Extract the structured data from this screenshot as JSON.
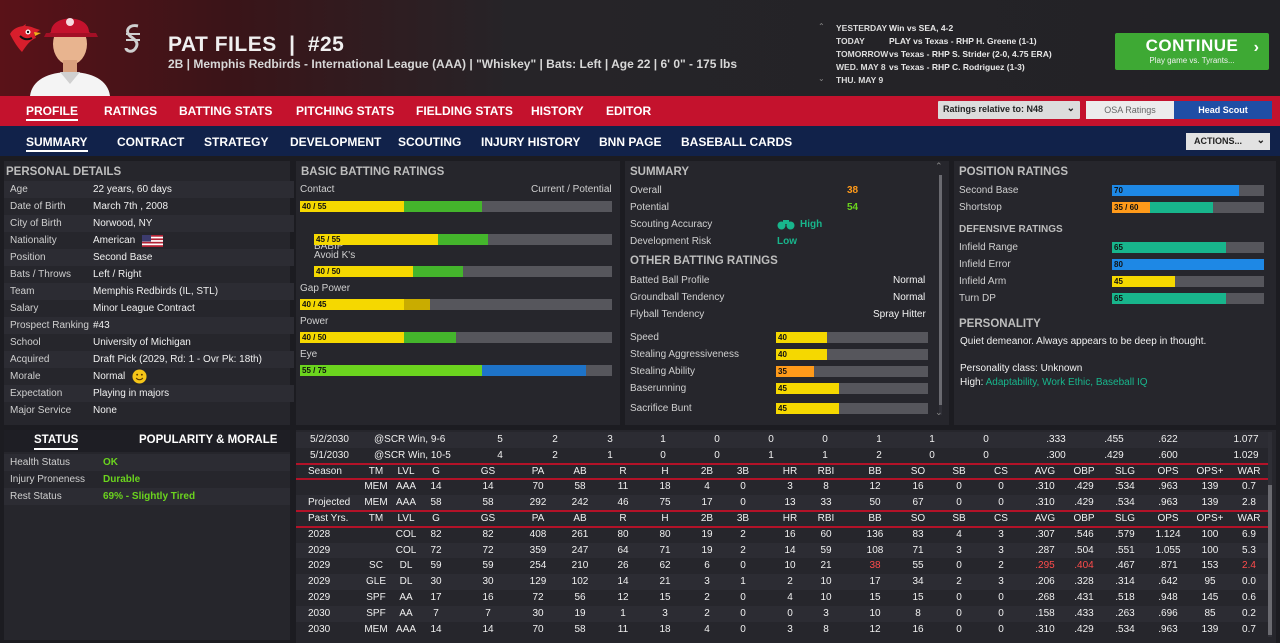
{
  "player": {
    "name": "PAT FILES",
    "number_sep": "|",
    "number": "#25",
    "subtitle": "2B | Memphis Redbirds - International League (AAA)  | \"Whiskey\" | Bats: Left  | Age 22  | 6' 0\"  - 175 lbs"
  },
  "schedule": [
    {
      "day": "YESTERDAY",
      "game": "Win vs SEA, 4-2"
    },
    {
      "day": "TODAY",
      "game": "PLAY vs Texas - RHP H. Greene (1-1)"
    },
    {
      "day": "TOMORROW",
      "game": "vs Texas - RHP S. Strider (2-0, 4.75 ERA)"
    },
    {
      "day": "WED. MAY 8",
      "game": "vs Texas - RHP C. Rodriguez (1-3)"
    },
    {
      "day": "THU. MAY 9",
      "game": ""
    }
  ],
  "continue": {
    "label": "CONTINUE",
    "sub": "Play game vs. Tyrants...",
    "chevron": "›"
  },
  "nav1": {
    "items": [
      "PROFILE",
      "RATINGS",
      "BATTING STATS",
      "PITCHING STATS",
      "FIELDING STATS",
      "HISTORY",
      "EDITOR"
    ],
    "ratings_relative": "Ratings relative to: N48",
    "osa": "OSA Ratings",
    "head_scout": "Head Scout"
  },
  "nav2": {
    "items": [
      "SUMMARY",
      "CONTRACT",
      "STRATEGY",
      "DEVELOPMENT",
      "SCOUTING",
      "INJURY HISTORY",
      "BNN PAGE",
      "BASEBALL CARDS"
    ],
    "actions": "ACTIONS..."
  },
  "personal": {
    "title": "PERSONAL DETAILS",
    "rows": [
      {
        "label": "Age",
        "value": "22 years, 60 days"
      },
      {
        "label": "Date of Birth",
        "value": "March 7th , 2008"
      },
      {
        "label": "City of Birth",
        "value": "Norwood, NY"
      },
      {
        "label": "Nationality",
        "value": "American"
      },
      {
        "label": "Position",
        "value": "Second Base"
      },
      {
        "label": "Bats / Throws",
        "value": "Left / Right"
      },
      {
        "label": "Team",
        "value": "Memphis Redbirds (IL, STL)"
      },
      {
        "label": "Salary",
        "value": "Minor League Contract"
      },
      {
        "label": "Prospect Ranking",
        "value": "#43"
      },
      {
        "label": "School",
        "value": "University of Michigan"
      },
      {
        "label": "Acquired",
        "value": "Draft Pick (2029, Rd: 1 - Ovr Pk: 18th)"
      },
      {
        "label": "Morale",
        "value": "Normal"
      },
      {
        "label": "Expectation",
        "value": "Playing in majors"
      },
      {
        "label": "Major Service",
        "value": "None"
      }
    ]
  },
  "status": {
    "tab_status": "STATUS",
    "tab_popularity": "POPULARITY & MORALE",
    "rows": [
      {
        "label": "Health Status",
        "value": "OK"
      },
      {
        "label": "Injury Proneness",
        "value": "Durable"
      },
      {
        "label": "Rest Status",
        "value": "69% - Slightly Tired"
      }
    ]
  },
  "batting_ratings": {
    "title": "BASIC BATTING RATINGS",
    "header": "Current / Potential",
    "rows": [
      {
        "label": "Contact",
        "text": "40 / 55",
        "current": 40,
        "potential": 55,
        "indent": false
      },
      {
        "label": "BABIP",
        "text": "45 / 55",
        "current": 45,
        "potential": 55,
        "indent": true
      },
      {
        "label": "Avoid K's",
        "text": "40 / 50",
        "current": 40,
        "potential": 50,
        "indent": true
      },
      {
        "label": "Gap Power",
        "text": "40 / 45",
        "current": 40,
        "potential": 45,
        "indent": false
      },
      {
        "label": "Power",
        "text": "40 / 50",
        "current": 40,
        "potential": 50,
        "indent": false
      },
      {
        "label": "Eye",
        "text": "55 / 75",
        "current": 55,
        "potential": 75,
        "indent": false
      }
    ]
  },
  "summary": {
    "title": "SUMMARY",
    "overall_label": "Overall",
    "overall": "38",
    "potential_label": "Potential",
    "potential": "54",
    "scouting_label": "Scouting Accuracy",
    "scouting": "High",
    "risk_label": "Development Risk",
    "risk": "Low",
    "other_title": "OTHER BATTING RATINGS",
    "other_text": [
      {
        "label": "Batted Ball Profile",
        "value": "Normal"
      },
      {
        "label": "Groundball Tendency",
        "value": "Normal"
      },
      {
        "label": "Flyball Tendency",
        "value": "Spray Hitter"
      }
    ],
    "other_bars": [
      {
        "label": "Speed",
        "value": 40
      },
      {
        "label": "Stealing Aggressiveness",
        "value": 40
      },
      {
        "label": "Stealing Ability",
        "value": 35
      },
      {
        "label": "Baserunning",
        "value": 45
      },
      {
        "label": "Sacrifice Bunt",
        "value": 45
      }
    ]
  },
  "position": {
    "title": "POSITION RATINGS",
    "rows": [
      {
        "label": "Second Base",
        "text": "70",
        "current": 70,
        "potential": 70
      },
      {
        "label": "Shortstop",
        "text": "35 / 60",
        "current": 35,
        "potential": 60
      }
    ],
    "def_title": "DEFENSIVE RATINGS",
    "def_rows": [
      {
        "label": "Infield Range",
        "value": 65
      },
      {
        "label": "Infield Error",
        "value": 80
      },
      {
        "label": "Infield Arm",
        "value": 45
      },
      {
        "label": "Turn DP",
        "value": 65
      }
    ]
  },
  "personality": {
    "title": "PERSONALITY",
    "desc": "Quiet demeanor. Always appears to be deep in thought.",
    "class": "Personality class: Unknown",
    "high_label": "High:",
    "high": "Adaptability, Work Ethic, Baseball IQ"
  },
  "stats": {
    "cols": [
      "G",
      "GS",
      "PA",
      "AB",
      "R",
      "H",
      "2B",
      "3B",
      "HR",
      "RBI",
      "BB",
      "SO",
      "SB",
      "CS",
      "AVG",
      "OBP",
      "SLG",
      "OPS",
      "OPS+",
      "WAR"
    ],
    "game_rows": [
      {
        "c0": "5/2/2030",
        "c1": "@SCR  Win, 9-6",
        "vals": [
          "5",
          "2",
          "3",
          "1",
          "0",
          "0",
          "0",
          "1",
          "1",
          "0",
          ".333",
          ".455",
          ".622",
          "1.077"
        ]
      },
      {
        "c0": "5/1/2030",
        "c1": "@SCR  Win, 10-5",
        "vals": [
          "4",
          "2",
          "1",
          "0",
          "0",
          "1",
          "1",
          "2",
          "0",
          "0",
          ".300",
          ".429",
          ".600",
          "1.029"
        ]
      }
    ],
    "season_hdr": [
      "Season",
      "TM",
      "LVL"
    ],
    "season_rows": [
      {
        "a": "",
        "tm": "MEM",
        "lvl": "AAA",
        "vals": [
          "14",
          "14",
          "70",
          "58",
          "11",
          "18",
          "4",
          "0",
          "3",
          "8",
          "12",
          "16",
          "0",
          "0",
          ".310",
          ".429",
          ".534",
          ".963",
          "139",
          "0.7"
        ]
      },
      {
        "a": "Projected",
        "tm": "MEM",
        "lvl": "AAA",
        "vals": [
          "58",
          "58",
          "292",
          "242",
          "46",
          "75",
          "17",
          "0",
          "13",
          "33",
          "50",
          "67",
          "0",
          "0",
          ".310",
          ".429",
          ".534",
          ".963",
          "139",
          "2.8"
        ]
      }
    ],
    "past_hdr": [
      "Past Yrs.",
      "TM",
      "LVL"
    ],
    "past_rows": [
      {
        "a": "2028",
        "tm": "",
        "lvl": "COL",
        "vals": [
          "82",
          "82",
          "408",
          "261",
          "80",
          "80",
          "19",
          "2",
          "16",
          "60",
          "136",
          "83",
          "4",
          "3",
          ".307",
          ".546",
          ".579",
          "1.124",
          "100",
          "6.9"
        ]
      },
      {
        "a": "2029",
        "tm": "",
        "lvl": "COL",
        "vals": [
          "72",
          "72",
          "359",
          "247",
          "64",
          "71",
          "19",
          "2",
          "14",
          "59",
          "108",
          "71",
          "3",
          "3",
          ".287",
          ".504",
          ".551",
          "1.055",
          "100",
          "5.3"
        ]
      },
      {
        "a": "2029",
        "tm": "SC",
        "lvl": "DL",
        "vals": [
          "59",
          "59",
          "254",
          "210",
          "26",
          "62",
          "6",
          "0",
          "10",
          "21",
          "38",
          "55",
          "0",
          "2",
          ".295",
          ".404",
          ".467",
          ".871",
          "153",
          "2.4"
        ]
      },
      {
        "a": "2029",
        "tm": "GLE",
        "lvl": "DL",
        "vals": [
          "30",
          "30",
          "129",
          "102",
          "14",
          "21",
          "3",
          "1",
          "2",
          "10",
          "17",
          "34",
          "2",
          "3",
          ".206",
          ".328",
          ".314",
          ".642",
          "95",
          "0.0"
        ]
      },
      {
        "a": "2029",
        "tm": "SPF",
        "lvl": "AA",
        "vals": [
          "17",
          "16",
          "72",
          "56",
          "12",
          "15",
          "2",
          "0",
          "4",
          "10",
          "15",
          "15",
          "0",
          "0",
          ".268",
          ".431",
          ".518",
          ".948",
          "145",
          "0.6"
        ]
      },
      {
        "a": "2030",
        "tm": "SPF",
        "lvl": "AA",
        "vals": [
          "7",
          "7",
          "30",
          "19",
          "1",
          "3",
          "2",
          "0",
          "0",
          "3",
          "10",
          "8",
          "0",
          "0",
          ".158",
          ".433",
          ".263",
          ".696",
          "85",
          "0.2"
        ]
      },
      {
        "a": "2030",
        "tm": "MEM",
        "lvl": "AAA",
        "vals": [
          "14",
          "14",
          "70",
          "58",
          "11",
          "18",
          "4",
          "0",
          "3",
          "8",
          "12",
          "16",
          "0",
          "0",
          ".310",
          ".429",
          ".534",
          ".963",
          "139",
          "0.7"
        ]
      }
    ]
  },
  "colors": {
    "bar_current": "#f5d800",
    "bar_potential": "#44b52c",
    "bar_eye_current": "#6bd41e",
    "bar_eye_potential": "#1e73c8",
    "bar_blue": "#1e88e5",
    "bar_teal": "#18b58c",
    "bar_orange": "#ff9a1a",
    "good_green": "#6bd41e",
    "overall_orange": "#ff9a1a",
    "red_text": "#ff4b4b"
  }
}
